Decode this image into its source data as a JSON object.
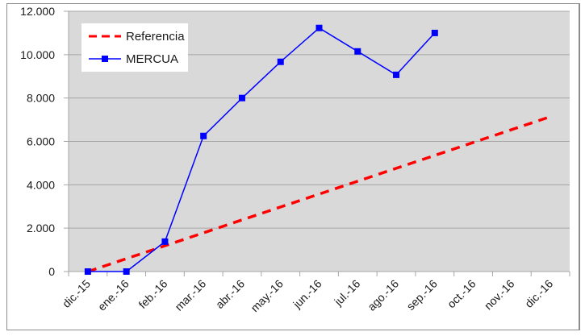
{
  "chart_data": {
    "type": "line",
    "title": "",
    "xlabel": "",
    "ylabel": "",
    "categories": [
      "dic.-15",
      "ene.-16",
      "feb.-16",
      "mar.-16",
      "abr.-16",
      "may.-16",
      "jun.-16",
      "jul.-16",
      "ago.-16",
      "sep.-16",
      "oct.-16",
      "nov.-16",
      "dic.-16"
    ],
    "series": [
      {
        "name": "Referencia",
        "color": "#ff0000",
        "style": "dashed",
        "values": [
          0,
          595,
          1190,
          1785,
          2380,
          2975,
          3570,
          4165,
          4760,
          5355,
          5950,
          6545,
          7140
        ]
      },
      {
        "name": "MERCUA",
        "color": "#0000ff",
        "style": "solid-square-markers",
        "values": [
          0,
          0,
          1380,
          6250,
          8000,
          9670,
          11230,
          10150,
          9070,
          11000,
          null,
          null,
          null
        ]
      }
    ],
    "yticks": [
      "0",
      "2.000",
      "4.000",
      "6.000",
      "8.000",
      "10.000",
      "12.000"
    ],
    "ylim": [
      0,
      12000
    ],
    "grid": true,
    "legend_position": "upper-left-inside",
    "plot_background": "#d9d9d9"
  },
  "legend": {
    "items": [
      {
        "label": "Referencia"
      },
      {
        "label": "MERCUA"
      }
    ]
  }
}
